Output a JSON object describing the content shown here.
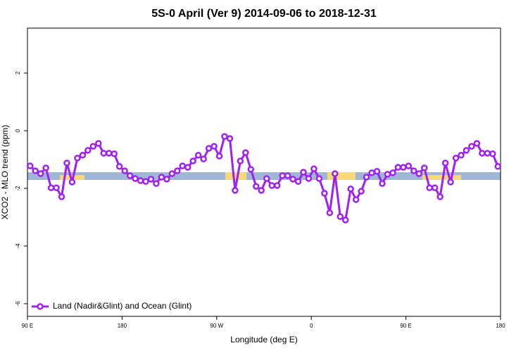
{
  "chart_data": {
    "type": "line",
    "title": "5S-0 April (Ver 9)   2014-09-06 to 2018-12-31",
    "xlabel": "Longitude (deg E)",
    "ylabel": "XCO2 - MLO trend (ppm)",
    "x": [
      92.5,
      97.5,
      102.5,
      107.5,
      112.5,
      117.5,
      122.5,
      127.5,
      132.5,
      137.5,
      142.5,
      147.5,
      152.5,
      157.5,
      162.5,
      167.5,
      172.5,
      177.5,
      182.5,
      187.5,
      192.5,
      197.5,
      202.5,
      207.5,
      212.5,
      217.5,
      222.5,
      227.5,
      232.5,
      237.5,
      242.5,
      247.5,
      252.5,
      257.5,
      262.5,
      267.5,
      272.5,
      277.5,
      282.5,
      287.5,
      292.5,
      297.5,
      302.5,
      307.5,
      312.5,
      317.5,
      322.5,
      327.5,
      332.5,
      337.5,
      342.5,
      347.5,
      352.5,
      357.5,
      362.5,
      367.5,
      372.5,
      377.5,
      382.5,
      387.5,
      392.5,
      397.5,
      402.5,
      407.5,
      412.5,
      417.5,
      422.5,
      427.5,
      432.5,
      437.5,
      442.5,
      447.5,
      452.5,
      457.5,
      462.5,
      467.5,
      472.5,
      477.5,
      482.5,
      487.5,
      492.5,
      497.5,
      502.5,
      507.5,
      512.5,
      517.5,
      522.5,
      527.5,
      532.5,
      537.5
    ],
    "series": [
      {
        "name": "Land (Nadir&Glint) and Ocean (Glint)",
        "color": "#a020f0",
        "values": [
          -1.22,
          -1.39,
          -1.49,
          -1.29,
          -1.98,
          -1.98,
          -2.29,
          -1.12,
          -1.78,
          -0.95,
          -0.85,
          -0.68,
          -0.54,
          -0.44,
          -0.78,
          -0.78,
          -0.8,
          -1.24,
          -1.39,
          -1.56,
          -1.66,
          -1.73,
          -1.76,
          -1.68,
          -1.83,
          -1.61,
          -1.68,
          -1.49,
          -1.39,
          -1.22,
          -1.27,
          -1.05,
          -0.85,
          -0.98,
          -0.61,
          -0.54,
          -0.88,
          -0.2,
          -0.27,
          -2.07,
          -1.05,
          -0.76,
          -1.34,
          -1.93,
          -2.07,
          -1.66,
          -1.9,
          -1.9,
          -1.56,
          -1.56,
          -1.68,
          -1.76,
          -1.44,
          -1.66,
          -1.32,
          -1.66,
          -2.17,
          -2.85,
          -1.49,
          -2.98,
          -3.1,
          -2.02,
          -2.39,
          -2.1,
          -1.61,
          -1.46,
          -1.41,
          -1.83,
          -1.51,
          -1.46,
          -1.27,
          -1.27,
          -1.22,
          -1.39,
          -1.49,
          -1.29,
          -1.98,
          -1.98,
          -2.29,
          -1.12,
          -1.78,
          -0.95,
          -0.85,
          -0.68,
          -0.54,
          -0.44,
          -0.78,
          -0.78,
          -0.8,
          -1.24
        ]
      }
    ],
    "xlim": [
      90,
      540
    ],
    "xticks": [
      {
        "value": 90,
        "label": "90 E"
      },
      180,
      {
        "value": 270,
        "label": "90 W"
      },
      {
        "value": 360,
        "label": "0"
      },
      {
        "value": 450,
        "label": "90 E"
      },
      {
        "value": 540,
        "label": "180"
      }
    ],
    "ylim": [
      -6.44,
      3.56
    ],
    "yticks": [
      2,
      0,
      -2,
      -4,
      -6
    ],
    "legend": "bottom-left"
  }
}
